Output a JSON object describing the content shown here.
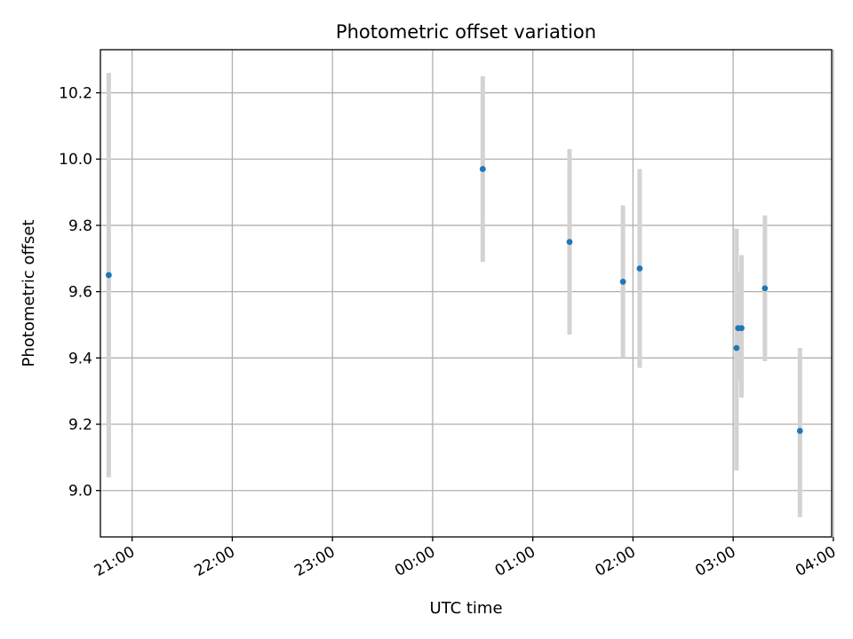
{
  "chart_data": {
    "type": "scatter",
    "title": "Photometric offset variation",
    "xlabel": "UTC time",
    "ylabel": "Photometric offset",
    "x_axis": {
      "type": "time",
      "range": [
        "20:41",
        "03:59"
      ],
      "ticks": [
        {
          "value": "21:00",
          "label": "21:00"
        },
        {
          "value": "22:00",
          "label": "22:00"
        },
        {
          "value": "23:00",
          "label": "23:00"
        },
        {
          "value": "00:00",
          "label": "00:00"
        },
        {
          "value": "01:00",
          "label": "01:00"
        },
        {
          "value": "02:00",
          "label": "02:00"
        },
        {
          "value": "03:00",
          "label": "03:00"
        },
        {
          "value": "04:00",
          "label": "04:00"
        }
      ]
    },
    "y_axis": {
      "range": [
        8.86,
        10.33
      ],
      "ticks": [
        {
          "value": 9.0,
          "label": "9.0"
        },
        {
          "value": 9.2,
          "label": "9.2"
        },
        {
          "value": 9.4,
          "label": "9.4"
        },
        {
          "value": 9.6,
          "label": "9.6"
        },
        {
          "value": 9.8,
          "label": "9.8"
        },
        {
          "value": 10.0,
          "label": "10.0"
        },
        {
          "value": 10.2,
          "label": "10.2"
        }
      ]
    },
    "grid": true,
    "legend": "none",
    "colors": {
      "points": "#1f77b4",
      "error_bars": "#d3d3d3",
      "grid": "#b0b0b0"
    },
    "points": [
      {
        "time": "20:46",
        "y": 9.65,
        "y_low": 9.04,
        "y_high": 10.26
      },
      {
        "time": "00:30",
        "y": 9.97,
        "y_low": 9.69,
        "y_high": 10.25
      },
      {
        "time": "01:22",
        "y": 9.75,
        "y_low": 9.47,
        "y_high": 10.03
      },
      {
        "time": "01:54",
        "y": 9.63,
        "y_low": 9.4,
        "y_high": 9.86
      },
      {
        "time": "02:04",
        "y": 9.67,
        "y_low": 9.37,
        "y_high": 9.97
      },
      {
        "time": "03:02",
        "y": 9.43,
        "y_low": 9.06,
        "y_high": 9.79
      },
      {
        "time": "03:03",
        "y": 9.49,
        "y_low": 9.33,
        "y_high": 9.66
      },
      {
        "time": "03:05",
        "y": 9.49,
        "y_low": 9.28,
        "y_high": 9.71
      },
      {
        "time": "03:19",
        "y": 9.61,
        "y_low": 9.39,
        "y_high": 9.83
      },
      {
        "time": "03:40",
        "y": 9.18,
        "y_low": 8.92,
        "y_high": 9.43
      }
    ]
  }
}
